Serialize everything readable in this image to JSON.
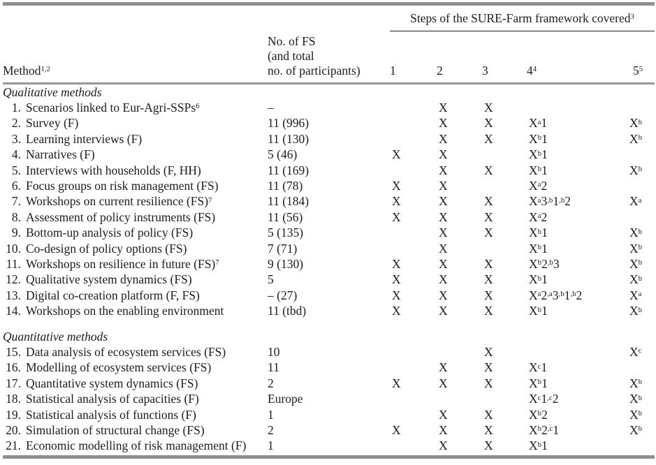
{
  "colors": {
    "rule_gray": "#8f8f8f",
    "rule_mid_gray": "#979797",
    "spanner_rule_black": "#222222",
    "text": "#1c1c1c",
    "background": "#ffffff"
  },
  "table": {
    "spanner_heading": "Steps of the SURE-Farm framework covered^{3}",
    "col_method": "Method^{1,2}",
    "col_fs": "No. of FS\n(and total\nno. of participants)",
    "step_cols": [
      "1",
      "2",
      "3",
      "4^{4}",
      "5^{5}"
    ],
    "sections": [
      {
        "title": "Qualitative methods",
        "rows": [
          {
            "num": "1.",
            "method": "Scenarios linked to Eur-Agri-SSPs^{6}",
            "fs": "–",
            "steps": [
              "",
              "X",
              "X",
              "",
              ""
            ]
          },
          {
            "num": "2.",
            "method": "Survey (F)",
            "fs": "11 (996)",
            "steps": [
              "",
              "X",
              "X",
              "X^{a}1",
              "X^{b}"
            ]
          },
          {
            "num": "3.",
            "method": "Learning interviews (F)",
            "fs": "11 (130)",
            "steps": [
              "",
              "X",
              "X",
              "X^{b}1",
              "X^{b}"
            ]
          },
          {
            "num": "4.",
            "method": "Narratives (F)",
            "fs": "5 (46)",
            "steps": [
              "X",
              "X",
              "",
              "X^{b}1",
              ""
            ]
          },
          {
            "num": "5.",
            "method": "Interviews with households (F, HH)",
            "fs": "11 (169)",
            "steps": [
              "",
              "X",
              "X",
              "X^{b}1",
              "X^{b}"
            ]
          },
          {
            "num": "6.",
            "method": "Focus groups on risk management (FS)",
            "fs": "11 (78)",
            "steps": [
              "X",
              "X",
              "",
              "X^{a}2",
              ""
            ]
          },
          {
            "num": "7.",
            "method": "Workshops on current resilience (FS)^{7}",
            "fs": "11 (184)",
            "steps": [
              "X",
              "X",
              "X",
              "X^{a}3^{,b}1^{,b}2",
              "X^{a}"
            ]
          },
          {
            "num": "8.",
            "method": "Assessment of policy instruments (FS)",
            "fs": "11 (56)",
            "steps": [
              "X",
              "X",
              "X",
              "X^{a}2",
              ""
            ]
          },
          {
            "num": "9.",
            "method": "Bottom-up analysis of policy (FS)",
            "fs": "5 (135)",
            "steps": [
              "",
              "X",
              "X",
              "X^{b}1",
              "X^{b}"
            ]
          },
          {
            "num": "10.",
            "method": "Co-design of policy options (FS)",
            "fs": "7 (71)",
            "steps": [
              "",
              "X",
              "",
              "X^{b}1",
              "X^{b}"
            ]
          },
          {
            "num": "11.",
            "method": "Workshops on resilience in future (FS)^{7}",
            "fs": "9 (130)",
            "steps": [
              "X",
              "X",
              "X",
              "X^{b}2^{,b}3",
              "X^{b}"
            ]
          },
          {
            "num": "12.",
            "method": "Qualitative system dynamics (FS)",
            "fs": "5",
            "steps": [
              "X",
              "X",
              "X",
              "X^{b}1",
              "X^{b}"
            ]
          },
          {
            "num": "13.",
            "method": "Digital co-creation platform (F, FS)",
            "fs": "– (27)",
            "steps": [
              "X",
              "X",
              "X",
              "X^{a}2^{,a}3^{,b}1^{,b}2",
              "X^{a}"
            ]
          },
          {
            "num": "14.",
            "method": "Workshops on the enabling environment",
            "fs": "11 (tbd)",
            "steps": [
              "X",
              "X",
              "X",
              "X^{b}1",
              "X^{b}"
            ]
          }
        ]
      },
      {
        "title": "Quantitative methods",
        "rows": [
          {
            "num": "15.",
            "method": "Data analysis of ecosystem services (FS)",
            "fs": "10",
            "steps": [
              "",
              "",
              "X",
              "",
              "X^{c}"
            ]
          },
          {
            "num": "16.",
            "method": "Modelling of ecosystem services (FS)",
            "fs": "11",
            "steps": [
              "",
              "X",
              "X",
              "X^{c}1",
              ""
            ]
          },
          {
            "num": "17.",
            "method": "Quantitative system dynamics (FS)",
            "fs": "2",
            "steps": [
              "X",
              "X",
              "X",
              "X^{b}1",
              "X^{b}"
            ]
          },
          {
            "num": "18.",
            "method": "Statistical analysis of capacities (F)",
            "fs": "Europe",
            "steps": [
              "",
              "",
              "",
              "X^{c}1^{,c}2",
              "X^{b}"
            ]
          },
          {
            "num": "19.",
            "method": "Statistical analysis of functions (F)",
            "fs": "1",
            "steps": [
              "",
              "X",
              "X",
              "X^{b}2",
              "X^{b}"
            ]
          },
          {
            "num": "20.",
            "method": "Simulation of structural change (FS)",
            "fs": "2",
            "steps": [
              "X",
              "X",
              "X",
              "X^{b}2^{,c}1",
              "X^{b}"
            ]
          },
          {
            "num": "21.",
            "method": "Economic modelling of risk management (F)",
            "fs": "1",
            "steps": [
              "",
              "X",
              "X",
              "X^{b}1",
              ""
            ]
          }
        ]
      }
    ]
  }
}
